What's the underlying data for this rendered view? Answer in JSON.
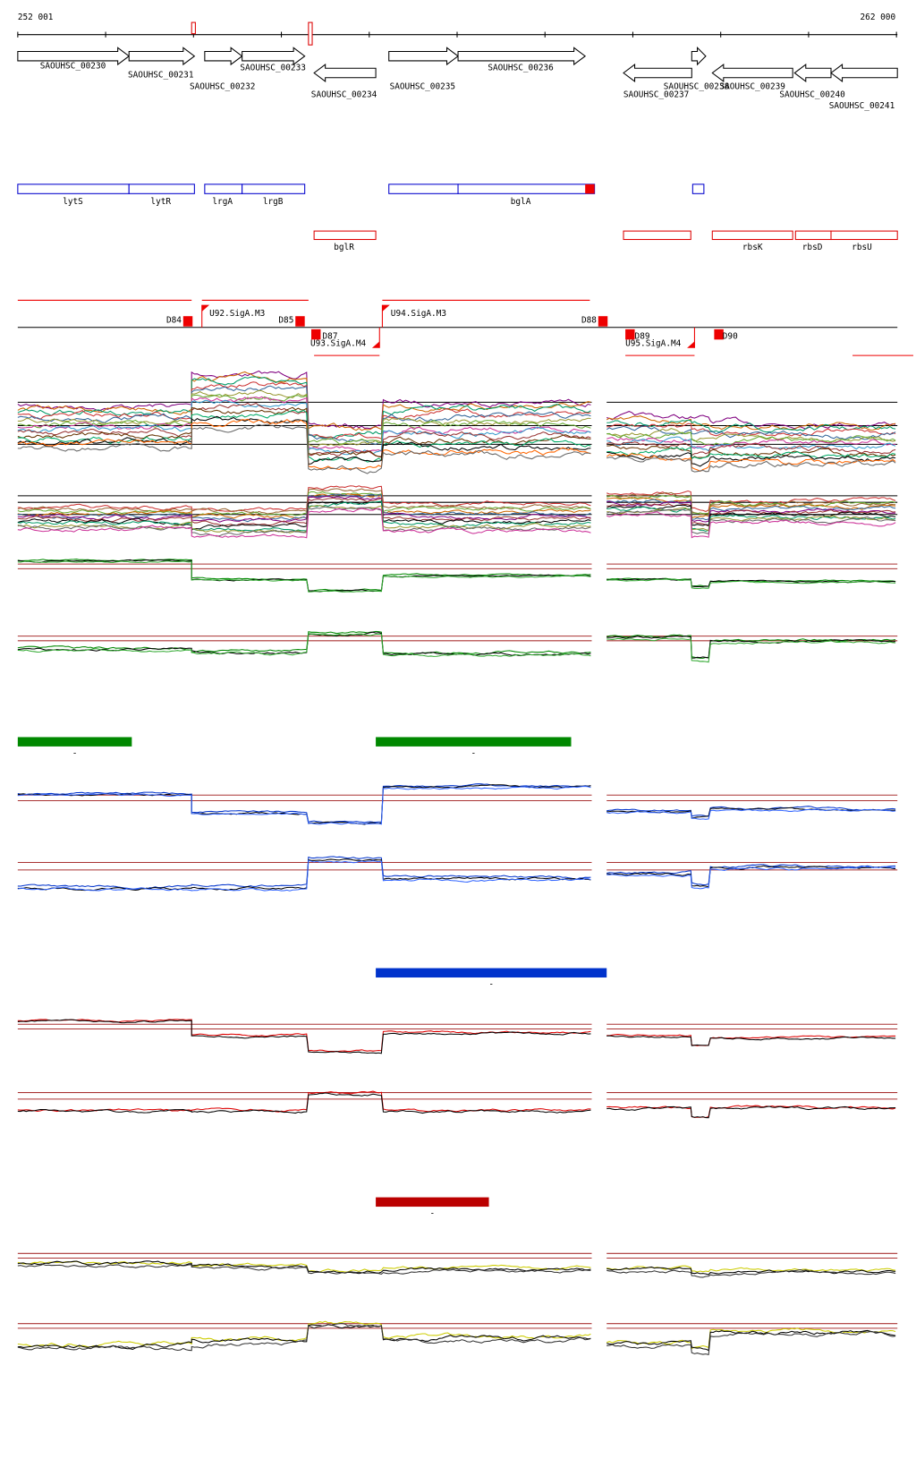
{
  "ruler": {
    "start": "252 001",
    "end": "262 000"
  },
  "genes": [
    "SAOUHSC_00230",
    "SAOUHSC_00231",
    "SAOUHSC_00232",
    "SAOUHSC_00233",
    "SAOUHSC_00234",
    "SAOUHSC_00235",
    "SAOUHSC_00236",
    "SAOUHSC_00237",
    "SAOUHSC_00238",
    "SAOUHSC_00239",
    "SAOUHSC_00240",
    "SAOUHSC_00241"
  ],
  "blue_features": [
    "lytS",
    "lytR",
    "lrgA",
    "lrgB",
    "bglA"
  ],
  "red_features": [
    "bglR",
    "rbsK",
    "rbsD",
    "rbsU"
  ],
  "promoters": [
    "U92.SigA.M3",
    "U93.SigA.M4",
    "U94.SigA.M3",
    "U95.SigA.M4"
  ],
  "terminators": [
    "D84",
    "D85",
    "D87",
    "D88",
    "D89",
    "D90"
  ],
  "bar_marks": [
    "-",
    "-",
    "-",
    "-"
  ]
}
